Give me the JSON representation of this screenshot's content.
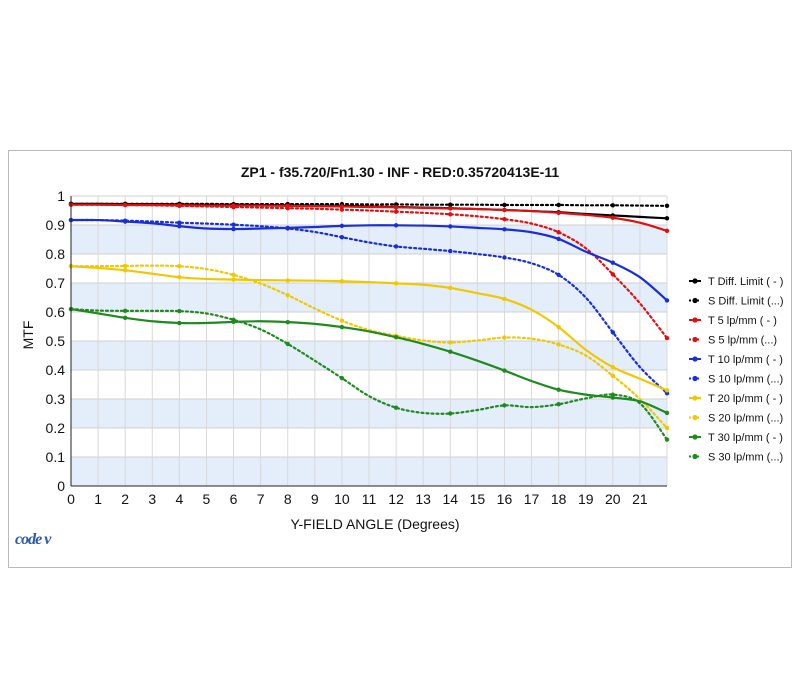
{
  "chart_data": {
    "type": "line",
    "title": "ZP1 - f35.720/Fn1.30 - INF - RED:0.35720413E-11",
    "xlabel": "Y-FIELD ANGLE (Degrees)",
    "ylabel": "MTF",
    "xlim": [
      0,
      22
    ],
    "ylim": [
      0,
      1
    ],
    "x_ticks": [
      "0",
      "1",
      "2",
      "3",
      "4",
      "5",
      "6",
      "7",
      "8",
      "9",
      "10",
      "11",
      "12",
      "13",
      "14",
      "15",
      "16",
      "17",
      "18",
      "19",
      "20",
      "21"
    ],
    "y_ticks": [
      "0",
      "0.1",
      "0.2",
      "0.3",
      "0.4",
      "0.5",
      "0.6",
      "0.7",
      "0.8",
      "0.9",
      "1"
    ],
    "grid": true,
    "legend_position": "right",
    "x": [
      0,
      1,
      2,
      3,
      4,
      5,
      6,
      7,
      8,
      9,
      10,
      11,
      12,
      13,
      14,
      15,
      16,
      17,
      18,
      19,
      20,
      21,
      22
    ],
    "series": [
      {
        "name": "T Diff. Limit ( - )",
        "color": "#000000",
        "dash": false,
        "values": [
          0.973,
          0.973,
          0.972,
          0.972,
          0.971,
          0.97,
          0.97,
          0.969,
          0.968,
          0.967,
          0.966,
          0.964,
          0.962,
          0.96,
          0.958,
          0.955,
          0.952,
          0.948,
          0.944,
          0.938,
          0.933,
          0.928,
          0.923
        ]
      },
      {
        "name": "S Diff. Limit (...)",
        "color": "#000000",
        "dash": true,
        "values": [
          0.973,
          0.973,
          0.973,
          0.973,
          0.973,
          0.973,
          0.972,
          0.972,
          0.972,
          0.972,
          0.972,
          0.971,
          0.971,
          0.97,
          0.97,
          0.97,
          0.969,
          0.969,
          0.969,
          0.968,
          0.968,
          0.967,
          0.966
        ]
      },
      {
        "name": "T 5 lp/mm ( - )",
        "color": "#e01010",
        "dash": false,
        "values": [
          0.97,
          0.97,
          0.969,
          0.969,
          0.968,
          0.967,
          0.967,
          0.967,
          0.966,
          0.965,
          0.964,
          0.962,
          0.961,
          0.959,
          0.957,
          0.955,
          0.952,
          0.948,
          0.942,
          0.935,
          0.925,
          0.908,
          0.88
        ]
      },
      {
        "name": "S 5 lp/mm (...)",
        "color": "#e01010",
        "dash": true,
        "values": [
          0.97,
          0.97,
          0.969,
          0.968,
          0.966,
          0.964,
          0.962,
          0.96,
          0.958,
          0.956,
          0.953,
          0.95,
          0.946,
          0.942,
          0.937,
          0.93,
          0.92,
          0.905,
          0.875,
          0.82,
          0.73,
          0.63,
          0.51
        ]
      },
      {
        "name": "T 10 lp/mm ( - )",
        "color": "#1a2ed8",
        "dash": false,
        "values": [
          0.917,
          0.917,
          0.912,
          0.906,
          0.896,
          0.888,
          0.886,
          0.888,
          0.89,
          0.893,
          0.897,
          0.899,
          0.899,
          0.898,
          0.895,
          0.89,
          0.885,
          0.875,
          0.852,
          0.808,
          0.77,
          0.72,
          0.64
        ]
      },
      {
        "name": "S 10 lp/mm (...)",
        "color": "#1a2ed8",
        "dash": true,
        "values": [
          0.917,
          0.917,
          0.915,
          0.912,
          0.908,
          0.905,
          0.901,
          0.896,
          0.888,
          0.876,
          0.858,
          0.84,
          0.826,
          0.818,
          0.81,
          0.8,
          0.788,
          0.768,
          0.728,
          0.65,
          0.53,
          0.41,
          0.32
        ]
      },
      {
        "name": "T 20 lp/mm ( - )",
        "color": "#f0c800",
        "dash": false,
        "values": [
          0.758,
          0.752,
          0.744,
          0.732,
          0.72,
          0.714,
          0.712,
          0.71,
          0.709,
          0.708,
          0.706,
          0.703,
          0.699,
          0.694,
          0.683,
          0.665,
          0.645,
          0.608,
          0.548,
          0.47,
          0.41,
          0.37,
          0.33
        ]
      },
      {
        "name": "S 20 lp/mm (...)",
        "color": "#f0c800",
        "dash": true,
        "values": [
          0.758,
          0.758,
          0.759,
          0.76,
          0.758,
          0.748,
          0.728,
          0.698,
          0.658,
          0.612,
          0.57,
          0.538,
          0.518,
          0.502,
          0.495,
          0.502,
          0.512,
          0.508,
          0.488,
          0.45,
          0.38,
          0.3,
          0.2
        ]
      },
      {
        "name": "T 30 lp/mm ( - )",
        "color": "#1f8a1f",
        "dash": false,
        "values": [
          0.61,
          0.595,
          0.58,
          0.568,
          0.562,
          0.562,
          0.566,
          0.568,
          0.565,
          0.559,
          0.548,
          0.533,
          0.513,
          0.49,
          0.463,
          0.432,
          0.398,
          0.362,
          0.332,
          0.315,
          0.305,
          0.292,
          0.252
        ]
      },
      {
        "name": "S 30 lp/mm (...)",
        "color": "#1f8a1f",
        "dash": true,
        "values": [
          0.61,
          0.605,
          0.604,
          0.604,
          0.603,
          0.595,
          0.573,
          0.54,
          0.49,
          0.432,
          0.372,
          0.31,
          0.27,
          0.252,
          0.25,
          0.262,
          0.278,
          0.272,
          0.282,
          0.302,
          0.315,
          0.285,
          0.16
        ]
      }
    ]
  },
  "branding": {
    "logo_text": "code v"
  }
}
